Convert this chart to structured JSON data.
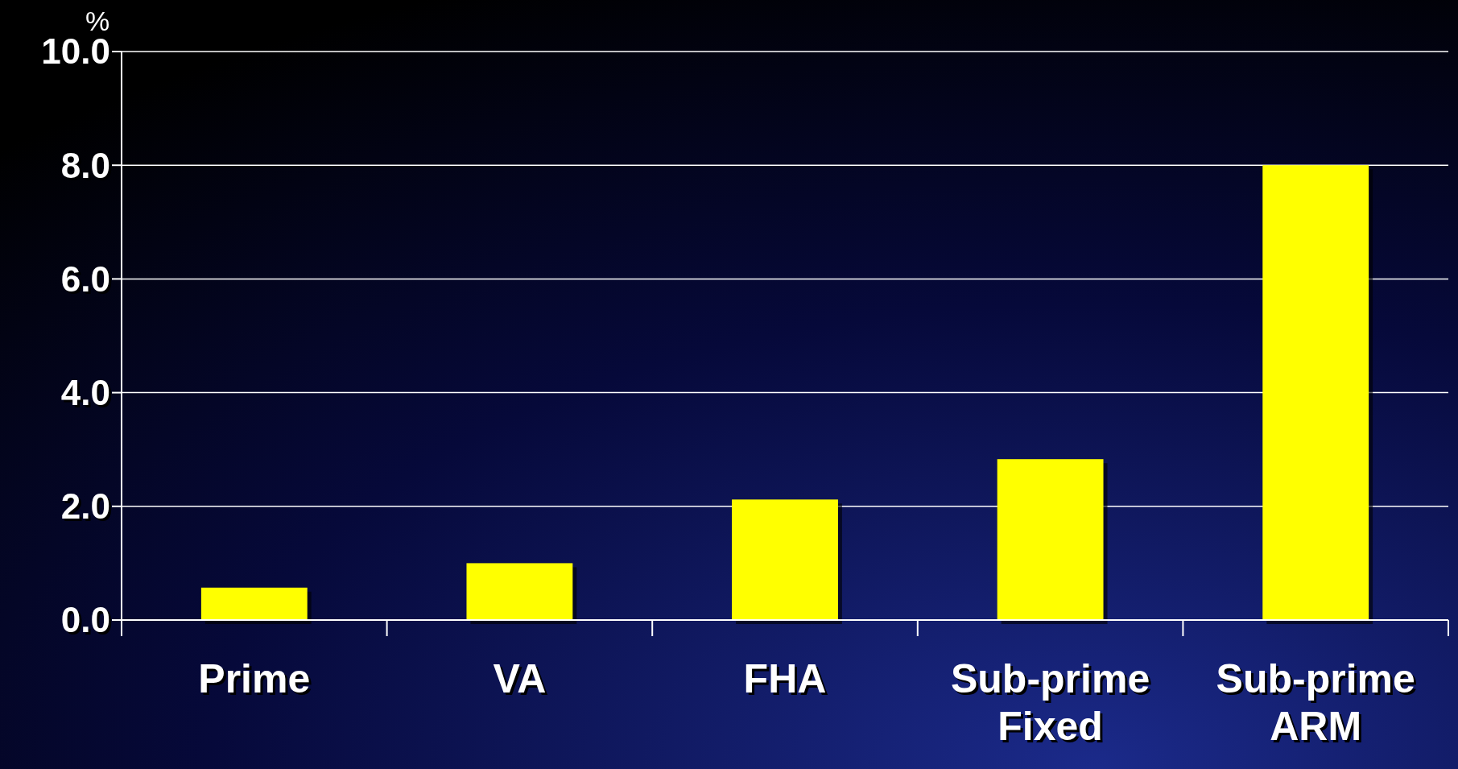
{
  "chart_data": {
    "type": "bar",
    "ylabel": "%",
    "categories": [
      "Prime",
      "VA",
      "FHA",
      "Sub-prime Fixed",
      "Sub-prime ARM"
    ],
    "values": [
      0.57,
      1.0,
      2.12,
      2.83,
      8.0
    ],
    "color": "#ffff00",
    "ylim": [
      0,
      10
    ],
    "yticks": [
      {
        "value": 0,
        "label": "0.0"
      },
      {
        "value": 2,
        "label": "2.0"
      },
      {
        "value": 4,
        "label": "4.0"
      },
      {
        "value": 6,
        "label": "6.0"
      },
      {
        "value": 8,
        "label": "8.0"
      },
      {
        "value": 10,
        "label": "10.0"
      }
    ],
    "grid": "y"
  }
}
